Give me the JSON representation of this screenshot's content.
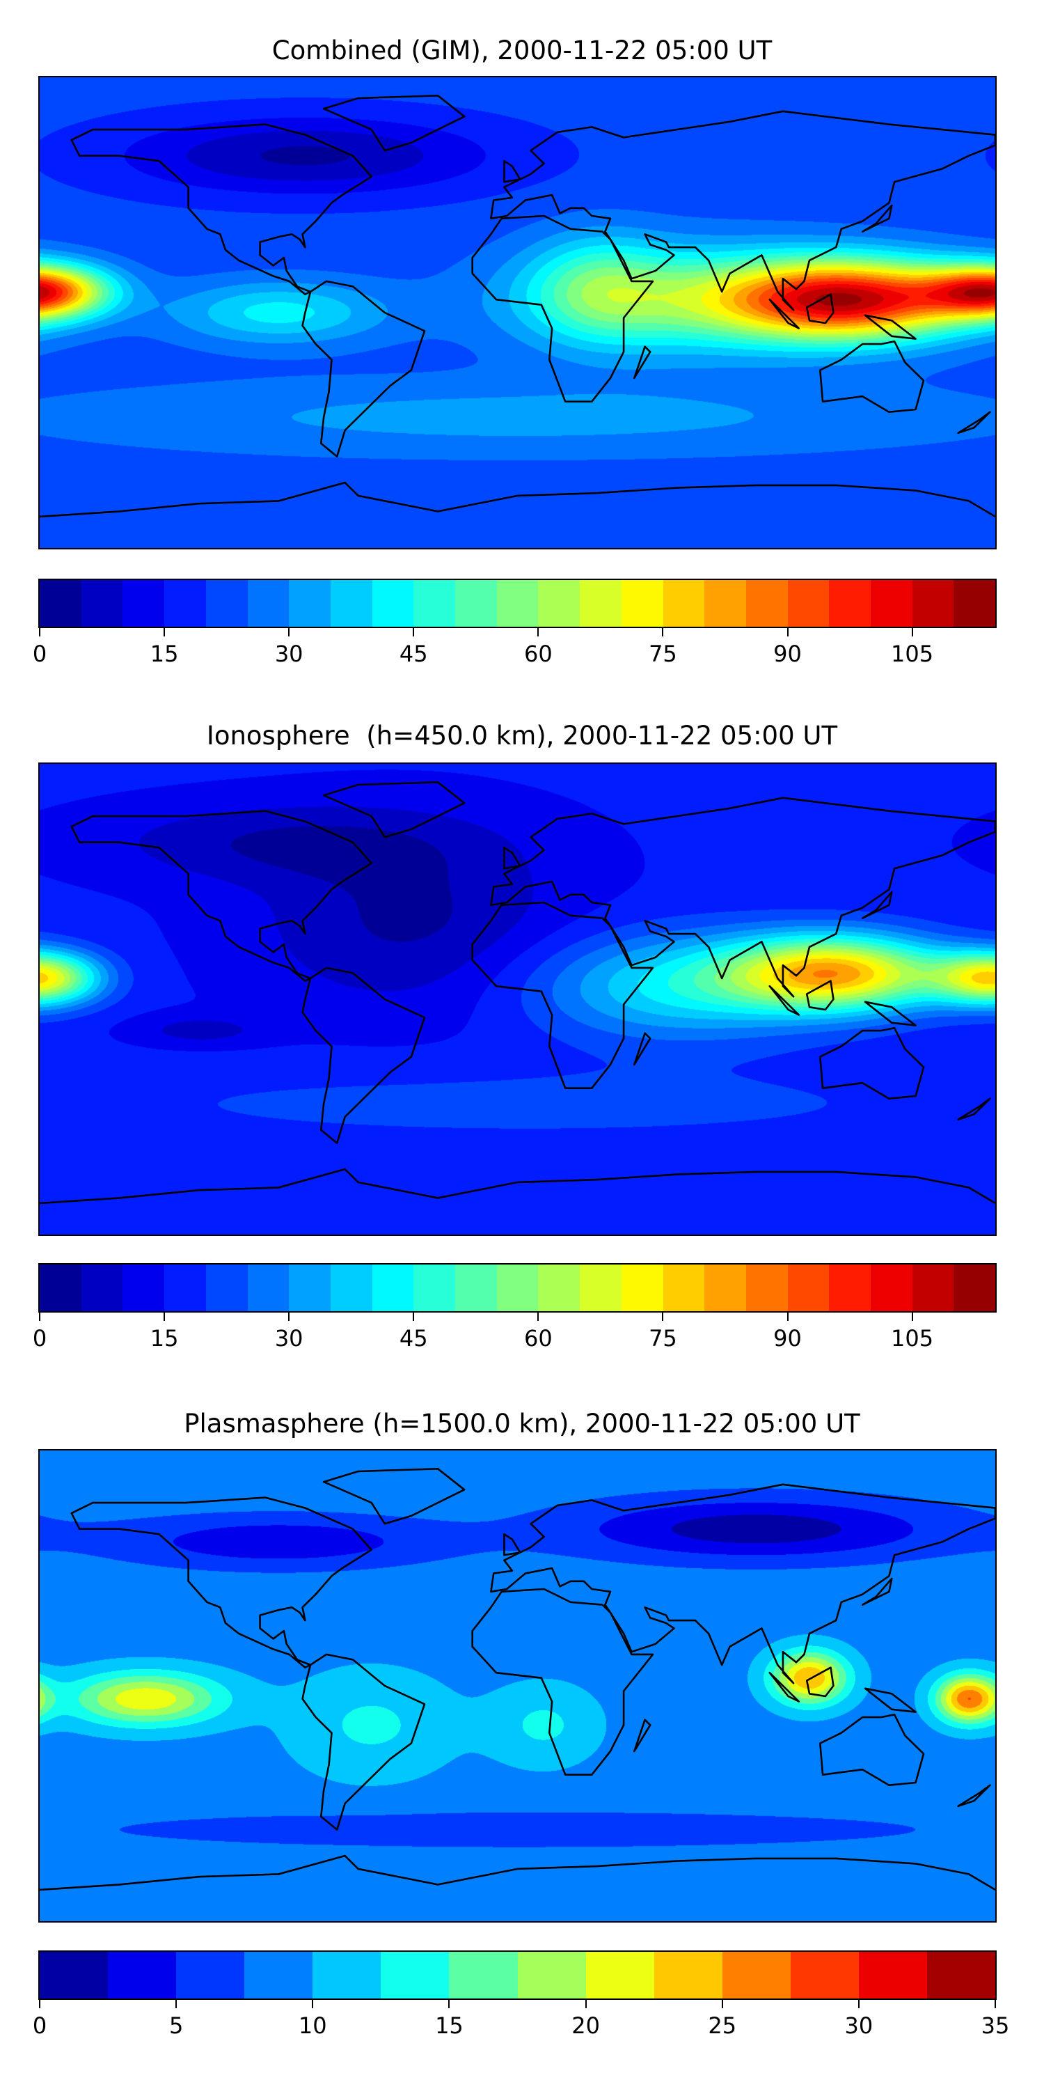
{
  "chart_data": [
    {
      "type": "heatmap",
      "title": "Combined (GIM), 2000-11-22 05:00 UT",
      "xlabel": "",
      "ylabel": "",
      "lon_range": [
        -180,
        180
      ],
      "lat_range": [
        -90,
        90
      ],
      "colorbar": {
        "levels_min": 0,
        "levels_max": 115,
        "level_step": 5,
        "ticks": [
          "0",
          "15",
          "30",
          "45",
          "60",
          "75",
          "90",
          "105"
        ],
        "tick_values": [
          0,
          15,
          30,
          45,
          60,
          75,
          90,
          105
        ]
      },
      "colormap": "jet",
      "features": {
        "max_region": "Southeast Asia / western Pacific equatorial band (~105)",
        "min_region": "northern North America / North Atlantic (~5)"
      }
    },
    {
      "type": "heatmap",
      "title": "Ionosphere  (h=450.0 km), 2000-11-22 05:00 UT",
      "xlabel": "",
      "ylabel": "",
      "lon_range": [
        -180,
        180
      ],
      "lat_range": [
        -90,
        90
      ],
      "colorbar": {
        "levels_min": 0,
        "levels_max": 115,
        "level_step": 5,
        "ticks": [
          "0",
          "15",
          "30",
          "45",
          "60",
          "75",
          "90",
          "105"
        ],
        "tick_values": [
          0,
          15,
          30,
          45,
          60,
          75,
          90,
          105
        ]
      },
      "colormap": "jet",
      "features": {
        "max_region": "Southeast Asia equatorial (~85)",
        "min_region": "North America / Atlantic (~0-5)"
      }
    },
    {
      "type": "heatmap",
      "title": "Plasmasphere (h=1500.0 km), 2000-11-22 05:00 UT",
      "xlabel": "",
      "ylabel": "",
      "lon_range": [
        -180,
        180
      ],
      "lat_range": [
        -90,
        90
      ],
      "colorbar": {
        "levels_min": 0,
        "levels_max": 35,
        "level_step": 2.5,
        "ticks": [
          "0",
          "5",
          "10",
          "15",
          "20",
          "25",
          "30",
          "35"
        ],
        "tick_values": [
          0,
          5,
          10,
          15,
          20,
          25,
          30,
          35
        ]
      },
      "colormap": "jet",
      "features": {
        "max_region": "Southeast Asia and ~170E (~27-30)",
        "min_region": "northern Asia (~0-2.5)"
      }
    }
  ]
}
